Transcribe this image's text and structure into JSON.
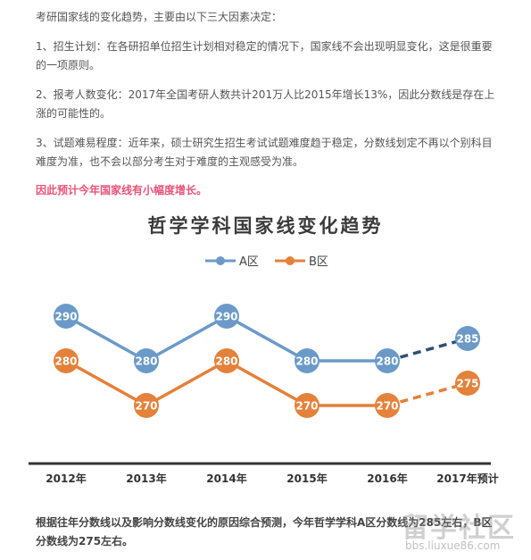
{
  "text": {
    "intro": "考研国家线的变化趋势，主要由以下三大因素决定：",
    "factor1": "1、招生计划：在各研招单位招生计划相对稳定的情况下，国家线不会出现明显变化，这是很重要的一项原则。",
    "factor2": "2、报考人数变化：2017年全国考研人数共计201万人比2015年增长13%，因此分数线是存在上涨的可能性的。",
    "factor3": "3、试题难易程度：近年来，硕士研究生招生考试试题难度趋于稳定，分数线划定不再以个别科目难度为准，也不会以部分考生对于难度的主观感受为准。",
    "conclusion": "因此预计今年国家线有小幅度增长。",
    "bottom": "根据往年分数线以及影响分数线变化的原因综合预测，今年哲学学科A区分数线为285左右，B区分数线为275左右。"
  },
  "watermark": {
    "main": "留学社区",
    "url": "bbs.liuxue86.com"
  },
  "colors": {
    "series_a": "#6b9ac9",
    "series_b": "#e4813a",
    "forecast_a": "#2f4f74",
    "title": "#3b3b3b",
    "conclusion": "#e8557a"
  },
  "chart_data": {
    "type": "line",
    "title": "哲学学科国家线变化趋势",
    "categories": [
      "2012年",
      "2013年",
      "2014年",
      "2015年",
      "2016年",
      "2017年预计"
    ],
    "legend_position": "top-center",
    "grid": false,
    "series": [
      {
        "name": "A区",
        "values": [
          290,
          280,
          290,
          280,
          280,
          285
        ],
        "forecast_last": true
      },
      {
        "name": "B区",
        "values": [
          280,
          270,
          280,
          270,
          270,
          275
        ],
        "forecast_last": true
      }
    ],
    "ylim": [
      262,
      298
    ]
  }
}
